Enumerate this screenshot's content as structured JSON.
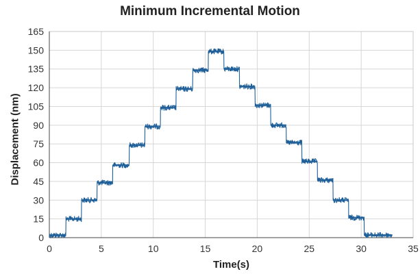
{
  "chart_data": {
    "type": "line",
    "title": "Minimum Incremental Motion",
    "xlabel": "Time(s)",
    "ylabel": "Displacement (nm)",
    "xlim": [
      0,
      35
    ],
    "ylim": [
      0,
      165
    ],
    "xticks": [
      0,
      5,
      10,
      15,
      20,
      25,
      30,
      35
    ],
    "yticks": [
      0,
      15,
      30,
      45,
      60,
      75,
      90,
      105,
      120,
      135,
      150,
      165
    ],
    "grid": true,
    "legend": "none",
    "color": "#1f5f99",
    "series": [
      {
        "steps": [
          {
            "x": [
              0.0,
              1.6
            ],
            "y": 2
          },
          {
            "x": [
              1.6,
              3.1
            ],
            "y": 15
          },
          {
            "x": [
              3.1,
              4.6
            ],
            "y": 30
          },
          {
            "x": [
              4.6,
              6.1
            ],
            "y": 44
          },
          {
            "x": [
              6.1,
              7.7
            ],
            "y": 58
          },
          {
            "x": [
              7.7,
              9.2
            ],
            "y": 74
          },
          {
            "x": [
              9.2,
              10.7
            ],
            "y": 89
          },
          {
            "x": [
              10.7,
              12.2
            ],
            "y": 104
          },
          {
            "x": [
              12.2,
              13.8
            ],
            "y": 119
          },
          {
            "x": [
              13.8,
              15.3
            ],
            "y": 134
          },
          {
            "x": [
              15.3,
              16.8
            ],
            "y": 149
          },
          {
            "x": [
              16.8,
              18.3
            ],
            "y": 135
          },
          {
            "x": [
              18.3,
              19.8
            ],
            "y": 121
          },
          {
            "x": [
              19.8,
              21.3
            ],
            "y": 106
          },
          {
            "x": [
              21.3,
              22.8
            ],
            "y": 90
          },
          {
            "x": [
              22.8,
              24.3
            ],
            "y": 76
          },
          {
            "x": [
              24.3,
              25.8
            ],
            "y": 61
          },
          {
            "x": [
              25.8,
              27.3
            ],
            "y": 46
          },
          {
            "x": [
              27.3,
              28.8
            ],
            "y": 30
          },
          {
            "x": [
              28.8,
              30.3
            ],
            "y": 16
          },
          {
            "x": [
              30.3,
              33.0
            ],
            "y": 2
          }
        ]
      }
    ]
  }
}
